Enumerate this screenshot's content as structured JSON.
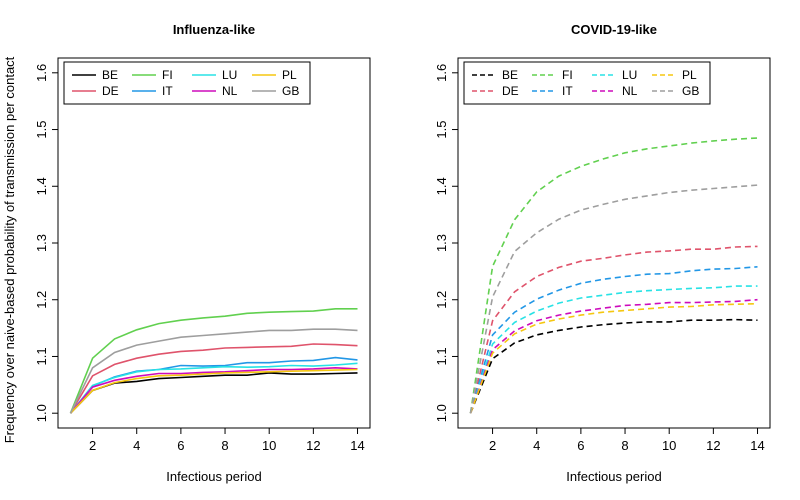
{
  "chart_data": [
    {
      "type": "line",
      "title": "Influenza-like",
      "xlabel": "Infectious period",
      "ylabel": "Frequency over naive-based probability of transmission per contact",
      "xlim": [
        1,
        14
      ],
      "ylim": [
        1.0,
        1.6
      ],
      "xticks": [
        2,
        4,
        6,
        8,
        10,
        12,
        14
      ],
      "yticks": [
        1.0,
        1.1,
        1.2,
        1.3,
        1.4,
        1.5,
        1.6
      ],
      "line_style": "solid",
      "legend": "top-left",
      "x": [
        1,
        2,
        3,
        4,
        5,
        6,
        7,
        8,
        9,
        10,
        11,
        12,
        13,
        14
      ],
      "series": [
        {
          "name": "BE",
          "color": "#000000",
          "values": [
            1.0,
            1.04,
            1.053,
            1.056,
            1.061,
            1.063,
            1.065,
            1.067,
            1.067,
            1.071,
            1.069,
            1.069,
            1.07,
            1.071
          ]
        },
        {
          "name": "DE",
          "color": "#DF536B",
          "values": [
            1.0,
            1.066,
            1.086,
            1.097,
            1.104,
            1.109,
            1.111,
            1.115,
            1.116,
            1.117,
            1.118,
            1.122,
            1.121,
            1.119
          ]
        },
        {
          "name": "FI",
          "color": "#61D04F",
          "values": [
            1.0,
            1.097,
            1.131,
            1.147,
            1.158,
            1.164,
            1.168,
            1.171,
            1.176,
            1.178,
            1.179,
            1.18,
            1.184,
            1.184
          ]
        },
        {
          "name": "IT",
          "color": "#2297E6",
          "values": [
            1.0,
            1.048,
            1.064,
            1.074,
            1.077,
            1.084,
            1.083,
            1.084,
            1.089,
            1.089,
            1.092,
            1.093,
            1.098,
            1.094
          ]
        },
        {
          "name": "LU",
          "color": "#28E2E5",
          "values": [
            1.0,
            1.049,
            1.063,
            1.073,
            1.077,
            1.078,
            1.08,
            1.082,
            1.081,
            1.082,
            1.084,
            1.083,
            1.085,
            1.088
          ]
        },
        {
          "name": "NL",
          "color": "#CD0BBC",
          "values": [
            1.0,
            1.046,
            1.058,
            1.065,
            1.07,
            1.07,
            1.072,
            1.073,
            1.075,
            1.077,
            1.077,
            1.078,
            1.08,
            1.078
          ]
        },
        {
          "name": "PL",
          "color": "#F5C710",
          "values": [
            1.0,
            1.04,
            1.054,
            1.061,
            1.066,
            1.067,
            1.069,
            1.071,
            1.072,
            1.073,
            1.074,
            1.075,
            1.076,
            1.077
          ]
        },
        {
          "name": "GB",
          "color": "#9E9E9E",
          "values": [
            1.0,
            1.08,
            1.107,
            1.12,
            1.127,
            1.134,
            1.137,
            1.14,
            1.143,
            1.146,
            1.146,
            1.148,
            1.148,
            1.146
          ]
        }
      ]
    },
    {
      "type": "line",
      "title": "COVID-19-like",
      "xlabel": "Infectious period",
      "ylabel": "",
      "xlim": [
        1,
        14
      ],
      "ylim": [
        1.0,
        1.6
      ],
      "xticks": [
        2,
        4,
        6,
        8,
        10,
        12,
        14
      ],
      "yticks": [
        1.0,
        1.1,
        1.2,
        1.3,
        1.4,
        1.5,
        1.6
      ],
      "line_style": "dashed",
      "legend": "top-left",
      "x": [
        1,
        2,
        3,
        4,
        5,
        6,
        7,
        8,
        9,
        10,
        11,
        12,
        13,
        14
      ],
      "series": [
        {
          "name": "BE",
          "color": "#000000",
          "values": [
            1.0,
            1.096,
            1.124,
            1.138,
            1.146,
            1.152,
            1.156,
            1.159,
            1.161,
            1.161,
            1.164,
            1.164,
            1.165,
            1.164
          ]
        },
        {
          "name": "DE",
          "color": "#DF536B",
          "values": [
            1.0,
            1.163,
            1.214,
            1.241,
            1.257,
            1.268,
            1.273,
            1.279,
            1.284,
            1.286,
            1.289,
            1.289,
            1.293,
            1.294
          ]
        },
        {
          "name": "FI",
          "color": "#61D04F",
          "values": [
            1.0,
            1.259,
            1.341,
            1.39,
            1.418,
            1.435,
            1.448,
            1.459,
            1.466,
            1.471,
            1.476,
            1.48,
            1.483,
            1.485
          ]
        },
        {
          "name": "IT",
          "color": "#2297E6",
          "values": [
            1.0,
            1.138,
            1.178,
            1.201,
            1.217,
            1.229,
            1.236,
            1.241,
            1.245,
            1.246,
            1.251,
            1.254,
            1.255,
            1.258
          ]
        },
        {
          "name": "LU",
          "color": "#28E2E5",
          "values": [
            1.0,
            1.122,
            1.16,
            1.18,
            1.194,
            1.203,
            1.208,
            1.213,
            1.216,
            1.218,
            1.22,
            1.221,
            1.224,
            1.224
          ]
        },
        {
          "name": "NL",
          "color": "#CD0BBC",
          "values": [
            1.0,
            1.112,
            1.145,
            1.163,
            1.173,
            1.18,
            1.185,
            1.19,
            1.192,
            1.195,
            1.195,
            1.196,
            1.197,
            1.2
          ]
        },
        {
          "name": "PL",
          "color": "#F5C710",
          "values": [
            1.0,
            1.106,
            1.14,
            1.157,
            1.166,
            1.173,
            1.178,
            1.181,
            1.184,
            1.187,
            1.188,
            1.191,
            1.192,
            1.193
          ]
        },
        {
          "name": "GB",
          "color": "#9E9E9E",
          "values": [
            1.0,
            1.205,
            1.285,
            1.318,
            1.342,
            1.358,
            1.368,
            1.377,
            1.383,
            1.389,
            1.393,
            1.396,
            1.399,
            1.402
          ]
        }
      ]
    }
  ]
}
